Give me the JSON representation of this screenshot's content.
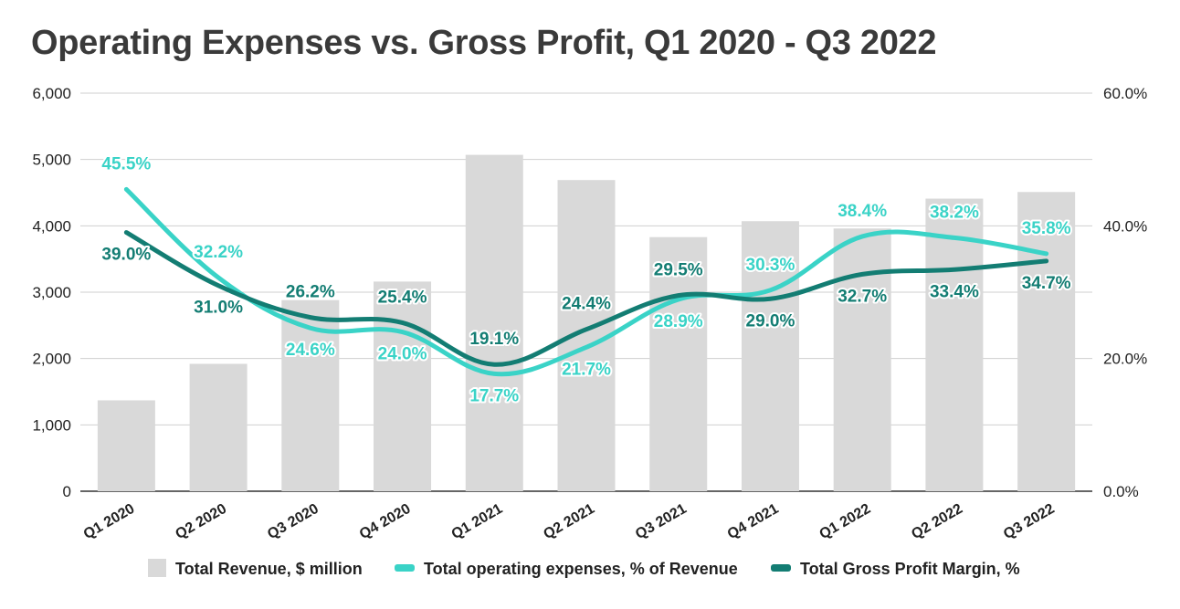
{
  "chart_data": {
    "type": "bar+line",
    "title": "Operating Expenses vs. Gross Profit, Q1 2020 - Q3 2022",
    "categories": [
      "Q1 2020",
      "Q2 2020",
      "Q3 2020",
      "Q4 2020",
      "Q1 2021",
      "Q2 2021",
      "Q3 2021",
      "Q4 2021",
      "Q1 2022",
      "Q2 2022",
      "Q3 2022"
    ],
    "left_axis": {
      "min": 0,
      "max": 6000,
      "ticks": [
        "0",
        "1,000",
        "2,000",
        "3,000",
        "4,000",
        "5,000",
        "6,000"
      ]
    },
    "right_axis": {
      "min": 0,
      "max": 60,
      "ticks": [
        "0.0%",
        "20.0%",
        "40.0%",
        "60.0%"
      ]
    },
    "series": [
      {
        "name": "Total Revenue, $ million",
        "kind": "bar",
        "axis": "left",
        "color": "#d9d9d9",
        "values": [
          1370,
          1920,
          2880,
          3160,
          5070,
          4690,
          3830,
          4070,
          3960,
          4410,
          4510
        ]
      },
      {
        "name": "Total operating expenses, % of Revenue",
        "kind": "line",
        "axis": "right",
        "color": "#3ad3c7",
        "values": [
          45.5,
          32.2,
          24.6,
          24.0,
          17.7,
          21.7,
          28.9,
          30.3,
          38.4,
          38.2,
          35.8
        ],
        "labels": [
          "45.5%",
          "32.2%",
          "24.6%",
          "24.0%",
          "17.7%",
          "21.7%",
          "28.9%",
          "30.3%",
          "38.4%",
          "38.2%",
          "35.8%"
        ]
      },
      {
        "name": "Total Gross Profit Margin, %",
        "kind": "line",
        "axis": "right",
        "color": "#137d73",
        "values": [
          39.0,
          31.0,
          26.2,
          25.4,
          19.1,
          24.4,
          29.5,
          29.0,
          32.7,
          33.4,
          34.7
        ],
        "labels": [
          "39.0%",
          "31.0%",
          "26.2%",
          "25.4%",
          "19.1%",
          "24.4%",
          "29.5%",
          "29.0%",
          "32.7%",
          "33.4%",
          "34.7%"
        ]
      }
    ]
  }
}
